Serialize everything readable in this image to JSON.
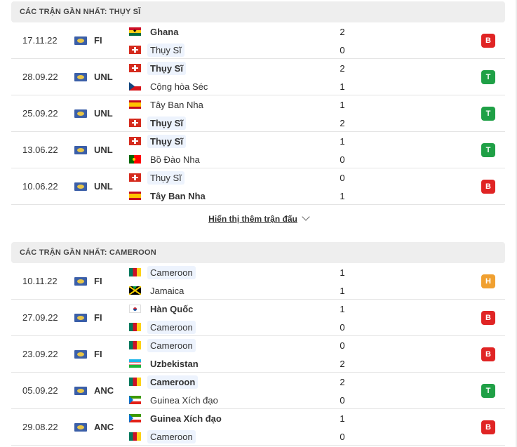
{
  "colors": {
    "loss": "#e02424",
    "win": "#1fa046",
    "draw": "#f0a030"
  },
  "sections": [
    {
      "title": "CÁC TRẬN GẦN NHẤT: THỤY SĨ",
      "matches": [
        {
          "date": "17.11.22",
          "comp": "FI",
          "home": {
            "name": "Ghana",
            "flag": "ghana",
            "bold": true,
            "hl": false
          },
          "away": {
            "name": "Thụy Sĩ",
            "flag": "swiss",
            "bold": false,
            "hl": true
          },
          "home_score": "2",
          "away_score": "0",
          "result": "B",
          "result_type": "loss"
        },
        {
          "date": "28.09.22",
          "comp": "UNL",
          "home": {
            "name": "Thụy Sĩ",
            "flag": "swiss",
            "bold": true,
            "hl": true
          },
          "away": {
            "name": "Cộng hòa Séc",
            "flag": "czech",
            "bold": false,
            "hl": false
          },
          "home_score": "2",
          "away_score": "1",
          "result": "T",
          "result_type": "win"
        },
        {
          "date": "25.09.22",
          "comp": "UNL",
          "home": {
            "name": "Tây Ban Nha",
            "flag": "spain",
            "bold": false,
            "hl": false
          },
          "away": {
            "name": "Thụy Sĩ",
            "flag": "swiss",
            "bold": true,
            "hl": true
          },
          "home_score": "1",
          "away_score": "2",
          "result": "T",
          "result_type": "win"
        },
        {
          "date": "13.06.22",
          "comp": "UNL",
          "home": {
            "name": "Thụy Sĩ",
            "flag": "swiss",
            "bold": true,
            "hl": true
          },
          "away": {
            "name": "Bồ Đào Nha",
            "flag": "portugal",
            "bold": false,
            "hl": false
          },
          "home_score": "1",
          "away_score": "0",
          "result": "T",
          "result_type": "win"
        },
        {
          "date": "10.06.22",
          "comp": "UNL",
          "home": {
            "name": "Thụy Sĩ",
            "flag": "swiss",
            "bold": false,
            "hl": true
          },
          "away": {
            "name": "Tây Ban Nha",
            "flag": "spain",
            "bold": true,
            "hl": false
          },
          "home_score": "0",
          "away_score": "1",
          "result": "B",
          "result_type": "loss"
        }
      ]
    },
    {
      "title": "CÁC TRẬN GẦN NHẤT: CAMEROON",
      "matches": [
        {
          "date": "10.11.22",
          "comp": "FI",
          "home": {
            "name": "Cameroon",
            "flag": "cameroon",
            "bold": false,
            "hl": true
          },
          "away": {
            "name": "Jamaica",
            "flag": "jamaica",
            "bold": false,
            "hl": false
          },
          "home_score": "1",
          "away_score": "1",
          "result": "H",
          "result_type": "draw"
        },
        {
          "date": "27.09.22",
          "comp": "FI",
          "home": {
            "name": "Hàn Quốc",
            "flag": "korea",
            "bold": true,
            "hl": false
          },
          "away": {
            "name": "Cameroon",
            "flag": "cameroon",
            "bold": false,
            "hl": true
          },
          "home_score": "1",
          "away_score": "0",
          "result": "B",
          "result_type": "loss"
        },
        {
          "date": "23.09.22",
          "comp": "FI",
          "home": {
            "name": "Cameroon",
            "flag": "cameroon",
            "bold": false,
            "hl": true
          },
          "away": {
            "name": "Uzbekistan",
            "flag": "uzbek",
            "bold": true,
            "hl": false
          },
          "home_score": "0",
          "away_score": "2",
          "result": "B",
          "result_type": "loss"
        },
        {
          "date": "05.09.22",
          "comp": "ANC",
          "home": {
            "name": "Cameroon",
            "flag": "cameroon",
            "bold": true,
            "hl": true
          },
          "away": {
            "name": "Guinea Xích đạo",
            "flag": "eqguinea",
            "bold": false,
            "hl": false
          },
          "home_score": "2",
          "away_score": "0",
          "result": "T",
          "result_type": "win"
        },
        {
          "date": "29.08.22",
          "comp": "ANC",
          "home": {
            "name": "Guinea Xích đạo",
            "flag": "eqguinea",
            "bold": true,
            "hl": false
          },
          "away": {
            "name": "Cameroon",
            "flag": "cameroon",
            "bold": false,
            "hl": true
          },
          "home_score": "1",
          "away_score": "0",
          "result": "B",
          "result_type": "loss"
        }
      ]
    }
  ],
  "show_more_label": "Hiển thị thêm trận đấu"
}
